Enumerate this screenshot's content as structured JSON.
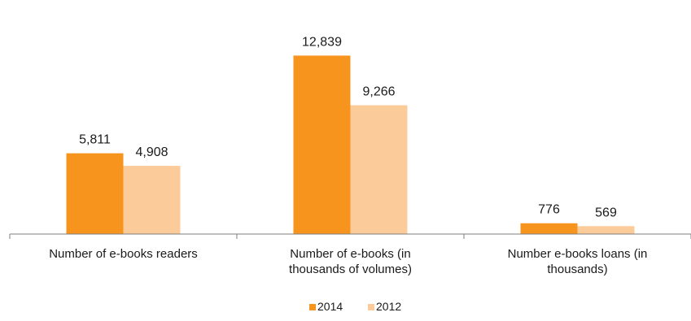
{
  "chart_data": {
    "type": "bar",
    "title": "",
    "xlabel": "",
    "ylabel": "",
    "categories": [
      [
        "Number of e-books readers"
      ],
      [
        "Number of e-books (in",
        "thousands of volumes)"
      ],
      [
        "Number e-books loans (in",
        "thousands)"
      ]
    ],
    "series": [
      {
        "name": "2014",
        "color": "#F7941D",
        "values": [
          5811,
          12839,
          776
        ],
        "labels": [
          "5,811",
          "12,839",
          "776"
        ]
      },
      {
        "name": "2012",
        "color": "#FCCB9A",
        "values": [
          4908,
          9266,
          569
        ],
        "labels": [
          "4,908",
          "9,266",
          "569"
        ]
      }
    ],
    "ylim": [
      0,
      14500
    ],
    "grid": false,
    "legend_position": "bottom"
  }
}
